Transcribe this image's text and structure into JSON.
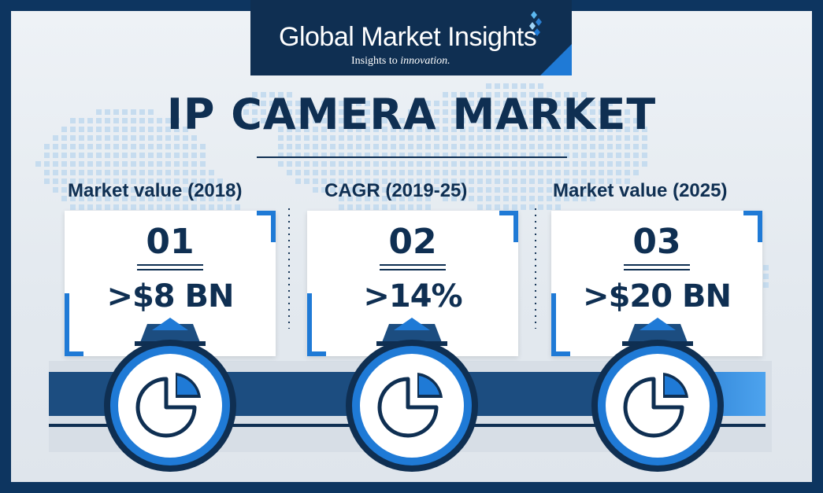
{
  "brand": {
    "name": "Global Market Insights",
    "tagline_lead": "Insights to ",
    "tagline_italic": "innovation."
  },
  "title": "IP CAMERA MARKET",
  "stats": [
    {
      "label": "Market value (2018)",
      "number": "01",
      "value": ">$8 BN",
      "icon": "pie-chart-icon"
    },
    {
      "label": "CAGR (2019-25)",
      "number": "02",
      "value": ">14%",
      "icon": "pie-chart-icon"
    },
    {
      "label": "Market value (2025)",
      "number": "03",
      "value": ">$20 BN",
      "icon": "pie-chart-icon"
    }
  ],
  "colors": {
    "navy": "#0f2f52",
    "frame": "#0d3560",
    "accent": "#1f7ad6",
    "band": "#1c4d80"
  }
}
